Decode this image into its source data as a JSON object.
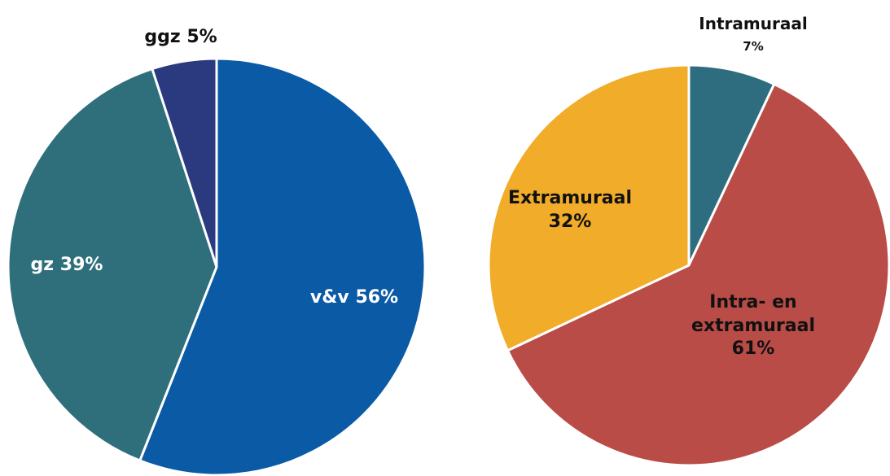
{
  "chart_data": [
    {
      "type": "pie",
      "categories": [
        "v&v",
        "gz",
        "ggz"
      ],
      "values": [
        56,
        39,
        5
      ],
      "value_labels": [
        "56%",
        "39%",
        "5%"
      ],
      "colors": [
        "#0b5aa6",
        "#2f6f7b",
        "#2b3a7f"
      ]
    },
    {
      "type": "pie",
      "categories": [
        "Intramuraal",
        "Intra- en extramuraal",
        "Extramuraal"
      ],
      "values": [
        7,
        61,
        32
      ],
      "value_labels": [
        "7%",
        "61%",
        "32%"
      ],
      "colors": [
        "#2e6d80",
        "#b94c46",
        "#f1ac2a"
      ]
    }
  ]
}
